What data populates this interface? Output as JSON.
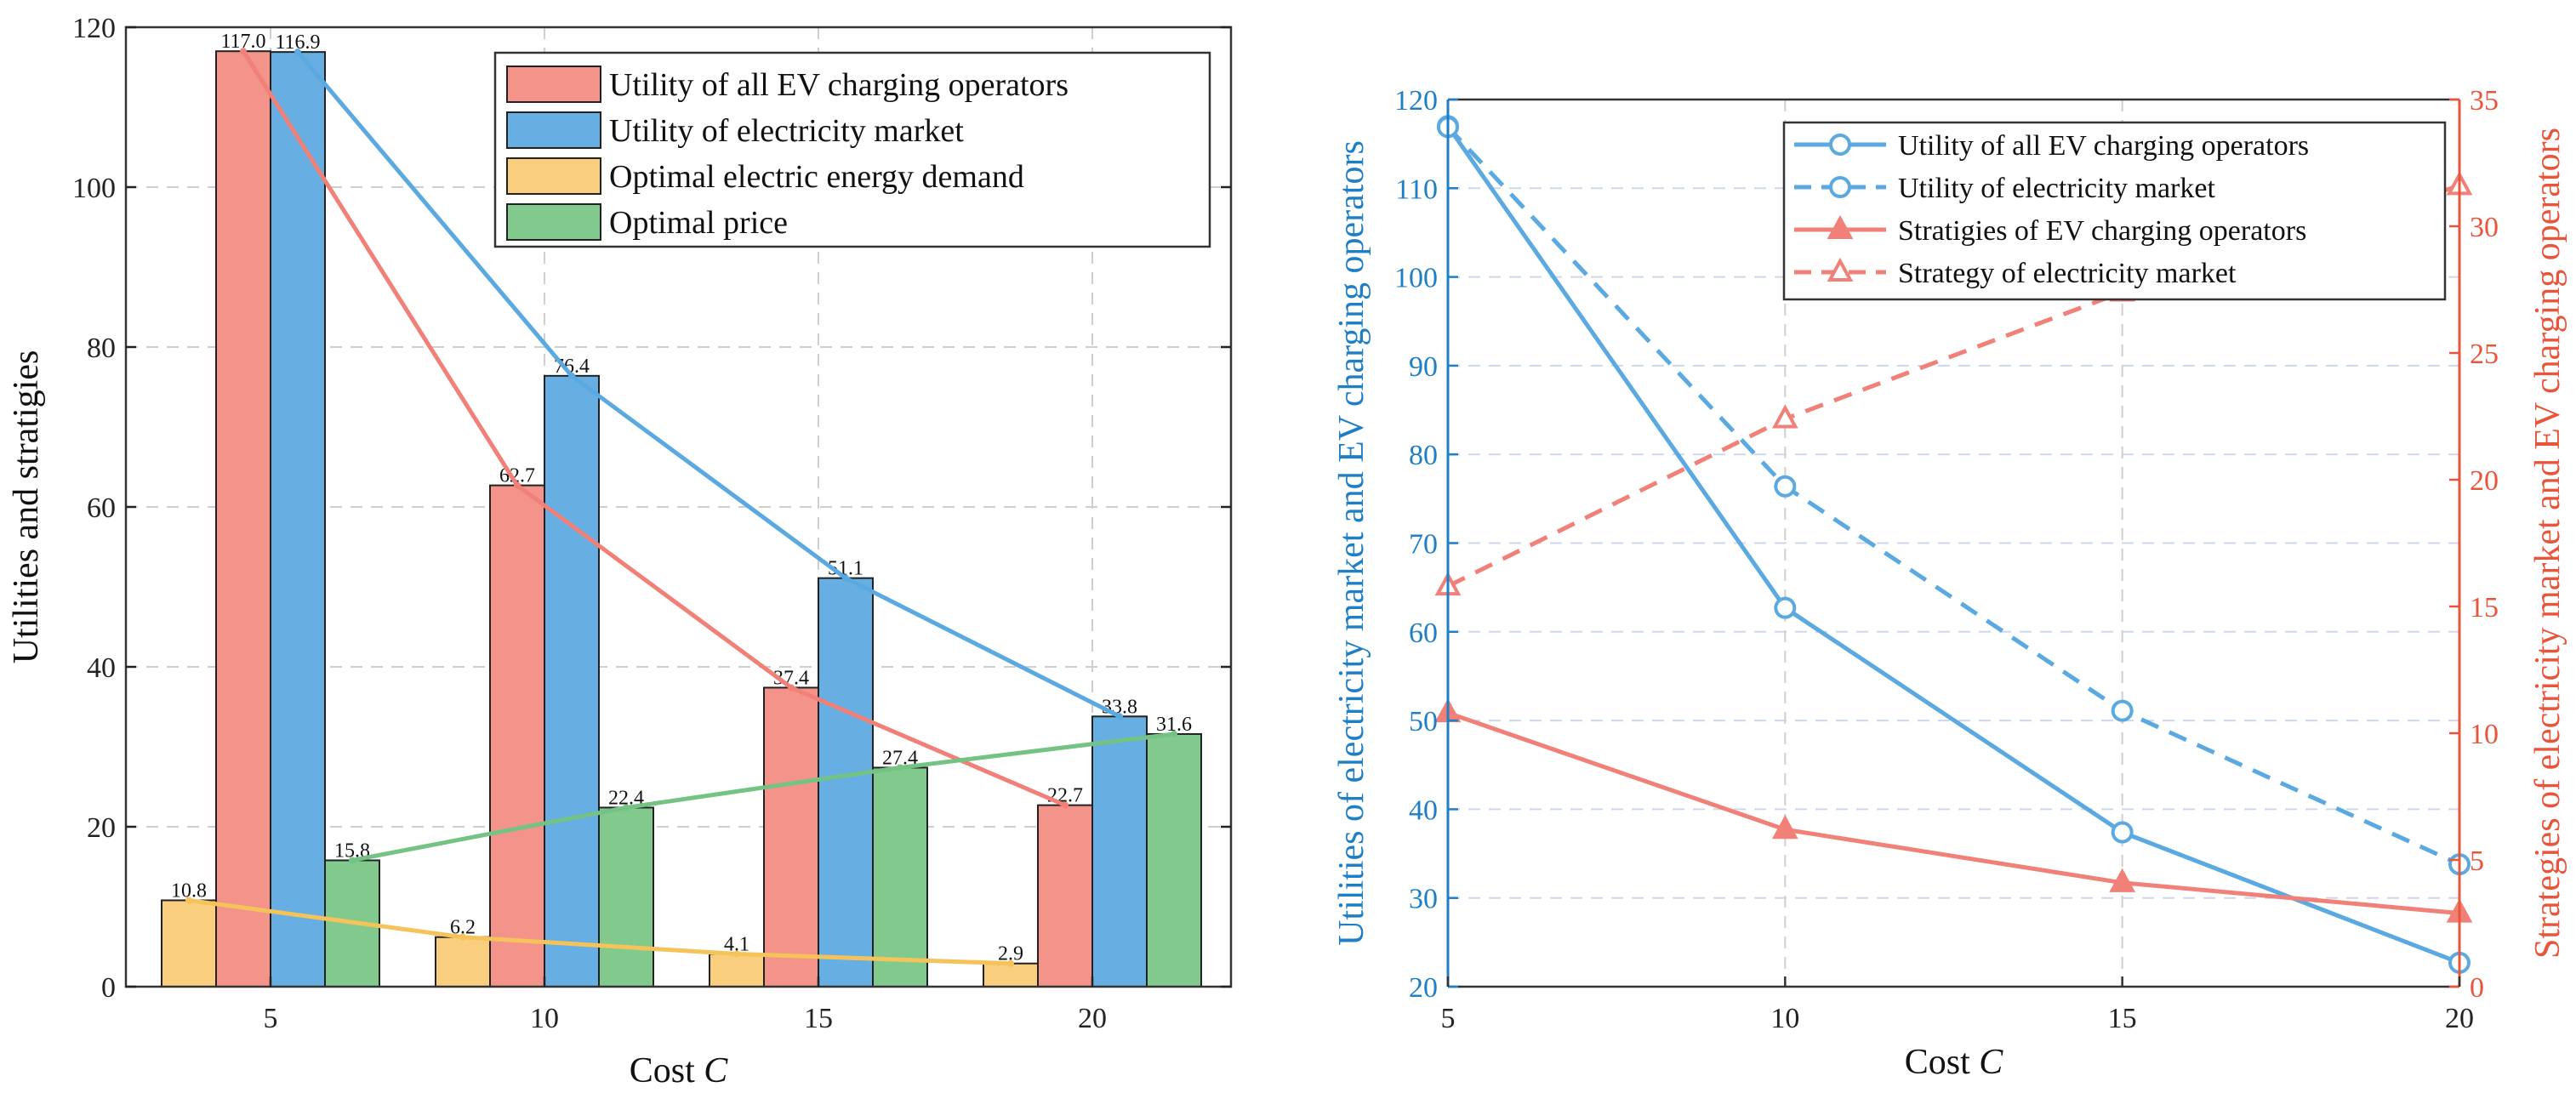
{
  "chart_data": [
    {
      "type": "bar",
      "xlabel": "Cost",
      "xlabel_var": "C",
      "ylabel": "Utilities and stratigies",
      "categories": [
        "5",
        "10",
        "15",
        "20"
      ],
      "ylim": [
        0,
        120
      ],
      "yticks": [
        0,
        20,
        40,
        60,
        80,
        100,
        120
      ],
      "grid": true,
      "legend_position": "top-right",
      "series": [
        {
          "name": "Optimal electric energy demand",
          "values": [
            10.8,
            6.2,
            4.1,
            2.9
          ],
          "labels": [
            "10.8",
            "6.2",
            "4.1",
            "2.9"
          ],
          "color": "#f9cf7f",
          "line_color": "#f5c35a"
        },
        {
          "name": "Utility of all EV charging operators",
          "values": [
            117.0,
            62.7,
            37.4,
            22.7
          ],
          "labels": [
            "117.0",
            "62.7",
            "37.4",
            "22.7"
          ],
          "color": "#f4938a",
          "line_color": "#f08078"
        },
        {
          "name": "Utility of electricity market",
          "values": [
            116.9,
            76.4,
            51.1,
            33.8
          ],
          "labels": [
            "116.9",
            "76.4",
            "51.1",
            "33.8"
          ],
          "color": "#67aee2",
          "line_color": "#5aa9e0"
        },
        {
          "name": "Optimal price",
          "values": [
            15.8,
            22.4,
            27.4,
            31.6
          ],
          "labels": [
            "15.8",
            "22.4",
            "27.4",
            "31.6"
          ],
          "color": "#82c98e",
          "line_color": "#74c284"
        }
      ],
      "legend_order": [
        1,
        2,
        0,
        3
      ]
    },
    {
      "type": "line",
      "xlabel": "Cost",
      "xlabel_var": "C",
      "ylabel_left": "Utilities of electricity market and EV charging operators",
      "ylabel_right": "Strategies of electricity market and EV charging operators",
      "x": [
        5,
        10,
        15,
        20
      ],
      "xticks": [
        "5",
        "10",
        "15",
        "20"
      ],
      "xlim": [
        5,
        20
      ],
      "ylim_left": [
        20,
        120
      ],
      "yticks_left": [
        20,
        30,
        40,
        50,
        60,
        70,
        80,
        90,
        100,
        110,
        120
      ],
      "ylim_right": [
        0,
        35
      ],
      "yticks_right": [
        0,
        5,
        10,
        15,
        20,
        25,
        30,
        35
      ],
      "left_axis_color": "#1f7fc4",
      "right_axis_color": "#e8553b",
      "legend_position": "top-right",
      "series": [
        {
          "name": "Utility of all EV charging operators",
          "axis": "left",
          "values": [
            117.0,
            62.7,
            37.4,
            22.7
          ],
          "style": "solid",
          "marker": "circle",
          "color": "#5aa9e0"
        },
        {
          "name": "Utility of electricity market",
          "axis": "left",
          "values": [
            116.9,
            76.4,
            51.1,
            33.8
          ],
          "style": "dashed",
          "marker": "circle",
          "color": "#5aa9e0"
        },
        {
          "name": "Stratigies of EV charging operators",
          "axis": "right",
          "values": [
            10.8,
            6.2,
            4.1,
            2.9
          ],
          "style": "solid",
          "marker": "triangle",
          "color": "#f08078"
        },
        {
          "name": "Strategy of electricity market",
          "axis": "right",
          "values": [
            15.8,
            22.4,
            27.4,
            31.6
          ],
          "style": "dashed",
          "marker": "triangle",
          "color": "#f08078"
        }
      ]
    }
  ]
}
